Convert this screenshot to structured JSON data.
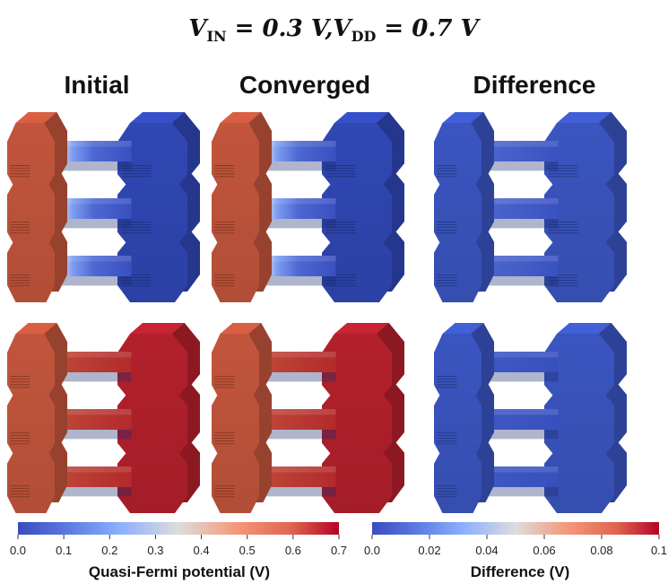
{
  "title": {
    "v_in_label": "V",
    "v_in_sub": "IN",
    "v_in_value": " = 0.3 V,",
    "v_dd_label": "V",
    "v_dd_sub": "DD",
    "v_dd_value": " = 0.7 V"
  },
  "columns": [
    "Initial",
    "Converged",
    "Difference"
  ],
  "colorbars": [
    {
      "label": "Quasi-Fermi potential (V)",
      "ticks": [
        "0.0",
        "0.1",
        "0.2",
        "0.3",
        "0.4",
        "0.5",
        "0.6",
        "0.7"
      ],
      "min": 0.0,
      "max": 0.7
    },
    {
      "label": "Difference (V)",
      "ticks": [
        "0.0",
        "0.02",
        "0.04",
        "0.06",
        "0.08",
        "0.1"
      ],
      "min": 0.0,
      "max": 0.1
    }
  ],
  "colors": {
    "blue_low": "#3b4cc0",
    "white_mid": "#dddddd",
    "red_high": "#b40426",
    "source_red": "#c2553c",
    "drain_red": "#b3202c",
    "drain_blue": "#3047b4",
    "diff_blue": "#3a55c0"
  },
  "panels": [
    {
      "name": "top-initial",
      "left": "source_red",
      "right": "drain_blue",
      "sheet": "gradient_short"
    },
    {
      "name": "top-converged",
      "left": "source_red",
      "right": "drain_blue",
      "sheet": "gradient_short"
    },
    {
      "name": "top-difference",
      "left": "diff_blue",
      "right": "diff_blue",
      "sheet": "diff_tip"
    },
    {
      "name": "bottom-initial",
      "left": "source_red",
      "right": "drain_red",
      "sheet": "red_flat"
    },
    {
      "name": "bottom-converged",
      "left": "source_red",
      "right": "drain_red",
      "sheet": "red_flat"
    },
    {
      "name": "bottom-difference",
      "left": "diff_blue",
      "right": "diff_blue",
      "sheet": "blue_flat"
    }
  ]
}
